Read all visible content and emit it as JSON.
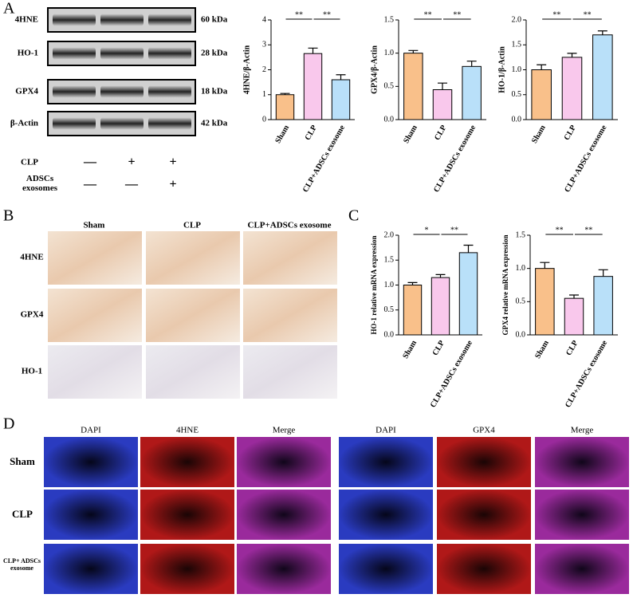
{
  "panel_labels": [
    "A",
    "B",
    "C",
    "D"
  ],
  "blot": {
    "bands": [
      {
        "name": "4HNE",
        "size": "60 kDa"
      },
      {
        "name": "HO-1",
        "size": "28 kDa"
      },
      {
        "name": "GPX4",
        "size": "18 kDa"
      },
      {
        "name": "β-Actin",
        "size": "42 kDa"
      }
    ],
    "conditions": [
      {
        "name": "CLP",
        "signs": [
          "—",
          "+",
          "+"
        ]
      },
      {
        "name": "ADSCs exosomes",
        "signs": [
          "—",
          "—",
          "+"
        ]
      }
    ]
  },
  "ihc": {
    "columns": [
      "Sham",
      "CLP",
      "CLP+ADSCs exosome"
    ],
    "rows": [
      "4HNE",
      "GPX4",
      "HO-1"
    ]
  },
  "if": {
    "columns": [
      "DAPI",
      "4HNE",
      "Merge",
      "DAPI",
      "GPX4",
      "Merge"
    ],
    "rows": [
      "Sham",
      "CLP",
      "CLP+ ADSCs exosome"
    ]
  },
  "chart_data": [
    {
      "type": "bar",
      "ylabel": "4HNE/β-Actin",
      "categories": [
        "Sham",
        "CLP",
        "CLP+ADSCs exosome"
      ],
      "values": [
        1.0,
        2.65,
        1.6
      ],
      "errors": [
        0.05,
        0.22,
        0.2
      ],
      "colors": [
        "#f9c08a",
        "#f9c8ec",
        "#b9e0f9"
      ],
      "ylim": [
        0,
        4
      ],
      "yticks": [
        0,
        1,
        2,
        3,
        4
      ],
      "annotations": [
        "**",
        "**"
      ]
    },
    {
      "type": "bar",
      "ylabel": "GPX4/β-Actin",
      "categories": [
        "Sham",
        "CLP",
        "CLP+ADSCs exosome"
      ],
      "values": [
        1.0,
        0.45,
        0.8
      ],
      "errors": [
        0.04,
        0.1,
        0.08
      ],
      "colors": [
        "#f9c08a",
        "#f9c8ec",
        "#b9e0f9"
      ],
      "ylim": [
        0,
        1.5
      ],
      "yticks": [
        {
          "value": 0,
          "label": "0.0"
        },
        {
          "value": 0.5,
          "label": "0.5"
        },
        {
          "value": 1,
          "label": "1.0"
        },
        {
          "value": 1.5,
          "label": "1.5"
        }
      ],
      "annotations": [
        "**",
        "**"
      ]
    },
    {
      "type": "bar",
      "ylabel": "HO-1/β-Actin",
      "categories": [
        "Sham",
        "CLP",
        "CLP+ADSCs exosome"
      ],
      "values": [
        1.0,
        1.25,
        1.7
      ],
      "errors": [
        0.1,
        0.08,
        0.08
      ],
      "colors": [
        "#f9c08a",
        "#f9c8ec",
        "#b9e0f9"
      ],
      "ylim": [
        0,
        2
      ],
      "yticks": [
        {
          "value": 0,
          "label": "0.0"
        },
        {
          "value": 0.5,
          "label": "0.5"
        },
        {
          "value": 1,
          "label": "1.0"
        },
        {
          "value": 1.5,
          "label": "1.5"
        },
        {
          "value": 2,
          "label": "2.0"
        }
      ],
      "annotations": [
        "**",
        "**"
      ]
    },
    {
      "type": "bar",
      "ylabel": "HO-1 relative mRNA expression",
      "categories": [
        "Sham",
        "CLP",
        "CLP+ADSCs exosome"
      ],
      "values": [
        1.0,
        1.15,
        1.65
      ],
      "errors": [
        0.05,
        0.06,
        0.15
      ],
      "colors": [
        "#f9c08a",
        "#f9c8ec",
        "#b9e0f9"
      ],
      "ylim": [
        0,
        2
      ],
      "yticks": [
        {
          "value": 0,
          "label": "0.0"
        },
        {
          "value": 0.5,
          "label": "0.5"
        },
        {
          "value": 1,
          "label": "1.0"
        },
        {
          "value": 1.5,
          "label": "1.5"
        },
        {
          "value": 2,
          "label": "2.0"
        }
      ],
      "annotations": [
        "*",
        "**"
      ]
    },
    {
      "type": "bar",
      "ylabel": "GPX4 relative mRNA expression",
      "categories": [
        "Sham",
        "CLP",
        "CLP+ADSCs exosome"
      ],
      "values": [
        1.0,
        0.55,
        0.88
      ],
      "errors": [
        0.09,
        0.05,
        0.1
      ],
      "colors": [
        "#f9c08a",
        "#f9c8ec",
        "#b9e0f9"
      ],
      "ylim": [
        0,
        1.5
      ],
      "yticks": [
        {
          "value": 0,
          "label": "0.0"
        },
        {
          "value": 0.5,
          "label": "0.5"
        },
        {
          "value": 1,
          "label": "1.0"
        },
        {
          "value": 1.5,
          "label": "1.5"
        }
      ],
      "annotations": [
        "**",
        "**"
      ]
    }
  ]
}
